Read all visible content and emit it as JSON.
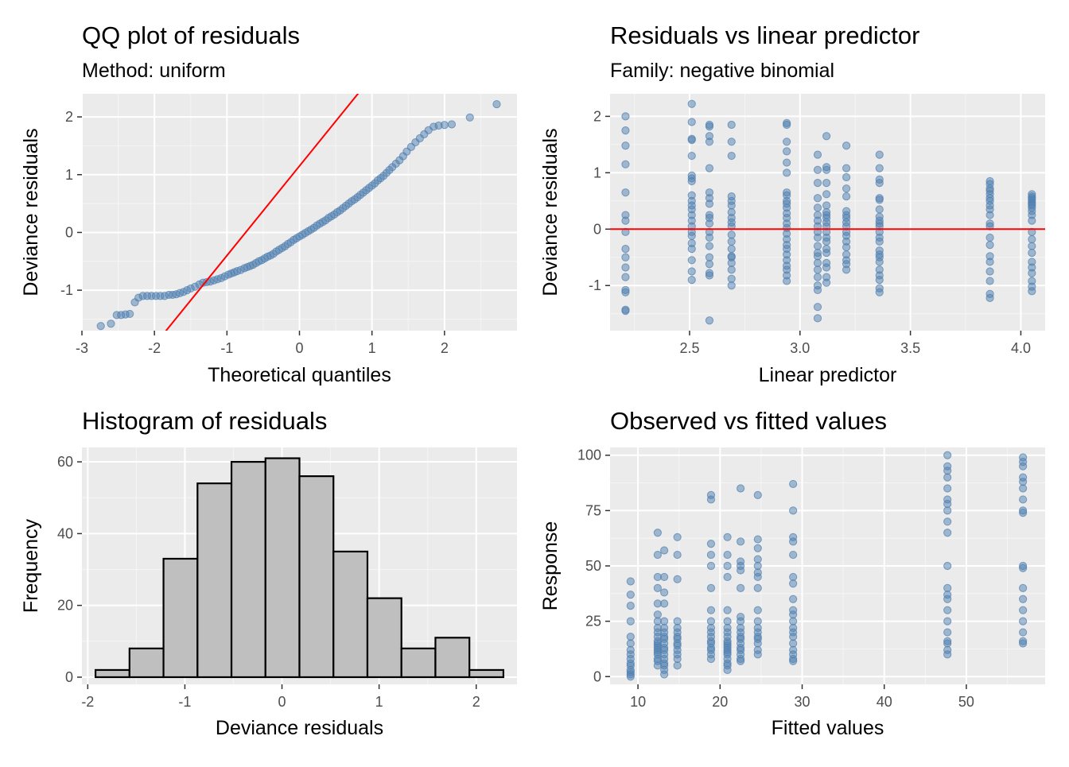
{
  "colors": {
    "panel_bg": "#ebebeb",
    "grid_major": "#ffffff",
    "grid_minor": "#f5f5f5",
    "point": "#4f7fb0",
    "reference_line": "#ff0000",
    "hist_fill": "#bfbfbf",
    "hist_stroke": "#000000"
  },
  "chart_data": [
    {
      "id": "qq",
      "type": "scatter",
      "title": "QQ plot of residuals",
      "subtitle": "Method: uniform",
      "xlabel": "Theoretical quantiles",
      "ylabel": "Deviance residuals",
      "xlim": [
        -3.0,
        3.0
      ],
      "ylim": [
        -1.7,
        2.4
      ],
      "xticks": [
        -3,
        -2,
        -1,
        0,
        1,
        2
      ],
      "xtick_labels": [
        "-3",
        "-2",
        "-1",
        "0",
        "1",
        "2"
      ],
      "yticks": [
        -1,
        0,
        1,
        2
      ],
      "ytick_labels": [
        "-1",
        "0",
        "1",
        "2"
      ],
      "grid": true,
      "reference_line": {
        "slope": 1.55,
        "intercept": 1.15
      },
      "points": [
        [
          -2.74,
          -1.62
        ],
        [
          -2.6,
          -1.58
        ],
        [
          -2.52,
          -1.43
        ],
        [
          -2.46,
          -1.43
        ],
        [
          -2.4,
          -1.42
        ],
        [
          -2.34,
          -1.41
        ],
        [
          -2.27,
          -1.21
        ],
        [
          -2.22,
          -1.13
        ],
        [
          -2.16,
          -1.1
        ],
        [
          -2.1,
          -1.1
        ],
        [
          -2.04,
          -1.1
        ],
        [
          -1.98,
          -1.1
        ],
        [
          -1.92,
          -1.1
        ],
        [
          -1.86,
          -1.1
        ],
        [
          -1.8,
          -1.08
        ],
        [
          -1.75,
          -1.08
        ],
        [
          -1.7,
          -1.07
        ],
        [
          -1.65,
          -1.05
        ],
        [
          -1.6,
          -1.03
        ],
        [
          -1.55,
          -1.0
        ],
        [
          -1.5,
          -0.97
        ],
        [
          -1.44,
          -0.94
        ],
        [
          -1.38,
          -0.9
        ],
        [
          -1.33,
          -0.87
        ],
        [
          -1.28,
          -0.86
        ],
        [
          -1.23,
          -0.85
        ],
        [
          -1.18,
          -0.83
        ],
        [
          -1.13,
          -0.81
        ],
        [
          -1.08,
          -0.79
        ],
        [
          -1.03,
          -0.76
        ],
        [
          -0.98,
          -0.73
        ],
        [
          -0.94,
          -0.71
        ],
        [
          -0.9,
          -0.69
        ],
        [
          -0.86,
          -0.67
        ],
        [
          -0.81,
          -0.65
        ],
        [
          -0.76,
          -0.62
        ],
        [
          -0.72,
          -0.6
        ],
        [
          -0.68,
          -0.58
        ],
        [
          -0.64,
          -0.56
        ],
        [
          -0.6,
          -0.53
        ],
        [
          -0.56,
          -0.5
        ],
        [
          -0.52,
          -0.48
        ],
        [
          -0.48,
          -0.45
        ],
        [
          -0.44,
          -0.42
        ],
        [
          -0.4,
          -0.4
        ],
        [
          -0.36,
          -0.37
        ],
        [
          -0.32,
          -0.33
        ],
        [
          -0.28,
          -0.3
        ],
        [
          -0.24,
          -0.27
        ],
        [
          -0.2,
          -0.24
        ],
        [
          -0.16,
          -0.2
        ],
        [
          -0.12,
          -0.17
        ],
        [
          -0.08,
          -0.13
        ],
        [
          -0.04,
          -0.1
        ],
        [
          0.0,
          -0.07
        ],
        [
          0.04,
          -0.04
        ],
        [
          0.08,
          -0.01
        ],
        [
          0.12,
          0.02
        ],
        [
          0.16,
          0.05
        ],
        [
          0.2,
          0.08
        ],
        [
          0.24,
          0.12
        ],
        [
          0.28,
          0.15
        ],
        [
          0.32,
          0.18
        ],
        [
          0.36,
          0.21
        ],
        [
          0.4,
          0.25
        ],
        [
          0.44,
          0.28
        ],
        [
          0.48,
          0.31
        ],
        [
          0.52,
          0.35
        ],
        [
          0.56,
          0.38
        ],
        [
          0.6,
          0.42
        ],
        [
          0.64,
          0.46
        ],
        [
          0.68,
          0.5
        ],
        [
          0.72,
          0.54
        ],
        [
          0.76,
          0.57
        ],
        [
          0.8,
          0.61
        ],
        [
          0.84,
          0.65
        ],
        [
          0.88,
          0.69
        ],
        [
          0.92,
          0.73
        ],
        [
          0.96,
          0.77
        ],
        [
          1.0,
          0.81
        ],
        [
          1.04,
          0.85
        ],
        [
          1.08,
          0.9
        ],
        [
          1.12,
          0.94
        ],
        [
          1.16,
          0.98
        ],
        [
          1.2,
          1.03
        ],
        [
          1.24,
          1.08
        ],
        [
          1.28,
          1.13
        ],
        [
          1.33,
          1.19
        ],
        [
          1.38,
          1.25
        ],
        [
          1.43,
          1.32
        ],
        [
          1.48,
          1.4
        ],
        [
          1.54,
          1.48
        ],
        [
          1.6,
          1.56
        ],
        [
          1.66,
          1.63
        ],
        [
          1.72,
          1.7
        ],
        [
          1.78,
          1.77
        ],
        [
          1.85,
          1.83
        ],
        [
          1.92,
          1.85
        ],
        [
          2.0,
          1.86
        ],
        [
          2.1,
          1.87
        ],
        [
          2.35,
          1.99
        ],
        [
          2.72,
          2.22
        ]
      ]
    },
    {
      "id": "resid-vs-lp",
      "type": "scatter",
      "title": "Residuals vs linear predictor",
      "subtitle": "Family: negative binomial",
      "xlabel": "Linear predictor",
      "ylabel": "Deviance residuals",
      "xlim": [
        2.14,
        4.11
      ],
      "ylim": [
        -1.8,
        2.4
      ],
      "xticks": [
        2.5,
        3.0,
        3.5,
        4.0
      ],
      "xtick_labels": [
        "2.5",
        "3.0",
        "3.5",
        "4.0"
      ],
      "yticks": [
        -1,
        0,
        1,
        2
      ],
      "ytick_labels": [
        "-1",
        "0",
        "1",
        "2"
      ],
      "grid": true,
      "reference_line": {
        "y": 0
      },
      "columns": [
        {
          "x": 2.21,
          "y": [
            2.0,
            1.75,
            1.48,
            1.15,
            0.65,
            0.25,
            0.15,
            -0.05,
            -0.35,
            -0.5,
            -0.68,
            -0.85,
            -1.08,
            -1.12,
            -1.43,
            -1.45
          ]
        },
        {
          "x": 2.51,
          "y": [
            2.22,
            1.9,
            1.6,
            1.58,
            1.3,
            0.95,
            0.9,
            0.85,
            0.6,
            0.5,
            0.42,
            0.35,
            0.25,
            0.15,
            0.05,
            -0.05,
            -0.12,
            -0.25,
            -0.35,
            -0.55,
            -0.75,
            -0.9
          ]
        },
        {
          "x": 2.59,
          "y": [
            1.85,
            1.82,
            1.65,
            1.55,
            1.08,
            0.65,
            0.55,
            0.45,
            0.25,
            0.2,
            0.1,
            -0.05,
            -0.15,
            -0.3,
            -0.5,
            -0.62,
            -0.78,
            -0.82,
            -1.62
          ]
        },
        {
          "x": 2.69,
          "y": [
            1.85,
            1.55,
            1.3,
            0.58,
            0.5,
            0.42,
            0.3,
            0.2,
            0.12,
            0.05,
            -0.1,
            -0.22,
            -0.35,
            -0.48,
            -0.5,
            -0.6,
            -0.72,
            -0.88,
            -1.0
          ]
        },
        {
          "x": 2.94,
          "y": [
            1.88,
            1.85,
            1.55,
            1.38,
            1.18,
            1.0,
            0.65,
            0.6,
            0.5,
            0.45,
            0.38,
            0.28,
            0.2,
            0.1,
            0.02,
            -0.08,
            -0.18,
            -0.28,
            -0.35,
            -0.45,
            -0.55,
            -0.65,
            -0.72,
            -0.82,
            -0.92
          ]
        },
        {
          "x": 3.08,
          "y": [
            1.32,
            1.05,
            0.82,
            0.55,
            0.38,
            0.25,
            0.15,
            0.05,
            -0.05,
            -0.15,
            -0.3,
            -0.42,
            -0.48,
            -0.6,
            -0.72,
            -0.85,
            -1.0,
            -1.08,
            -1.38,
            -1.58
          ]
        },
        {
          "x": 3.12,
          "y": [
            1.65,
            1.1,
            1.05,
            0.82,
            0.62,
            0.42,
            0.3,
            0.25,
            0.2,
            0.12,
            0.05,
            -0.05,
            -0.15,
            -0.22,
            -0.35,
            -0.42,
            -0.6,
            -0.68,
            -0.85,
            -0.95
          ]
        },
        {
          "x": 3.21,
          "y": [
            1.48,
            1.08,
            0.92,
            0.72,
            0.58,
            0.32,
            0.25,
            0.2,
            0.12,
            0.05,
            -0.05,
            -0.12,
            -0.22,
            -0.32,
            -0.45,
            -0.55,
            -0.62,
            -0.72
          ]
        },
        {
          "x": 3.36,
          "y": [
            1.32,
            1.08,
            0.88,
            0.82,
            0.55,
            0.52,
            0.35,
            0.22,
            0.15,
            0.1,
            0.05,
            -0.05,
            -0.15,
            -0.22,
            -0.38,
            -0.45,
            -0.5,
            -0.58,
            -0.72,
            -0.82,
            -0.9,
            -1.05,
            -1.12
          ]
        },
        {
          "x": 3.86,
          "y": [
            0.85,
            0.8,
            0.72,
            0.68,
            0.62,
            0.55,
            0.5,
            0.42,
            0.35,
            0.25,
            0.1,
            0.05,
            -0.15,
            -0.28,
            -0.48,
            -0.58,
            -0.75,
            -0.92,
            -1.15,
            -1.22
          ]
        },
        {
          "x": 4.05,
          "y": [
            0.62,
            0.58,
            0.55,
            0.52,
            0.48,
            0.45,
            0.42,
            0.38,
            0.32,
            0.25,
            0.15,
            -0.05,
            -0.18,
            -0.3,
            -0.42,
            -0.58,
            -0.68,
            -0.78,
            -0.92,
            -1.02,
            -1.1
          ]
        }
      ]
    },
    {
      "id": "histogram",
      "type": "bar",
      "title": "Histogram of residuals",
      "xlabel": "Deviance residuals",
      "ylabel": "Frequency",
      "xlim": [
        -2.06,
        2.42
      ],
      "ylim": [
        -2,
        64
      ],
      "xticks": [
        -2,
        -1,
        0,
        1,
        2
      ],
      "xtick_labels": [
        "-2",
        "-1",
        "0",
        "1",
        "2"
      ],
      "yticks": [
        0,
        20,
        40,
        60
      ],
      "ytick_labels": [
        "0",
        "20",
        "40",
        "60"
      ],
      "grid": true,
      "bin_edges": [
        -1.92,
        -1.57,
        -1.22,
        -0.87,
        -0.52,
        -0.17,
        0.18,
        0.53,
        0.88,
        1.23,
        1.58,
        1.93,
        2.28
      ],
      "bins": [
        {
          "center": -1.745,
          "value": 2
        },
        {
          "center": -1.395,
          "value": 8
        },
        {
          "center": -1.045,
          "value": 33
        },
        {
          "center": -0.695,
          "value": 54
        },
        {
          "center": -0.345,
          "value": 60
        },
        {
          "center": 0.005,
          "value": 61
        },
        {
          "center": 0.355,
          "value": 56
        },
        {
          "center": 0.705,
          "value": 35
        },
        {
          "center": 1.055,
          "value": 22
        },
        {
          "center": 1.405,
          "value": 8
        },
        {
          "center": 1.755,
          "value": 11
        },
        {
          "center": 2.105,
          "value": 2
        }
      ]
    },
    {
      "id": "obs-vs-fitted",
      "type": "scatter",
      "title": "Observed vs fitted values",
      "xlabel": "Fitted values",
      "ylabel": "Response",
      "xlim": [
        6.6,
        59.6
      ],
      "ylim": [
        -3.5,
        103.5
      ],
      "xticks": [
        10,
        20,
        30,
        40,
        50
      ],
      "xtick_labels": [
        "10",
        "20",
        "30",
        "40",
        "50"
      ],
      "yticks": [
        0,
        25,
        50,
        75,
        100
      ],
      "ytick_labels": [
        "0",
        "25",
        "50",
        "75",
        "100"
      ],
      "grid": true,
      "columns": [
        {
          "x": 9.1,
          "y": [
            43,
            37,
            32,
            25,
            18,
            15,
            12,
            10,
            8,
            6,
            5,
            3,
            2,
            1,
            0
          ]
        },
        {
          "x": 12.4,
          "y": [
            65,
            55,
            45,
            40,
            33,
            28,
            25,
            22,
            20,
            18,
            16,
            15,
            14,
            13,
            12,
            11,
            10,
            8,
            7,
            5
          ]
        },
        {
          "x": 13.2,
          "y": [
            57,
            45,
            38,
            33,
            25,
            22,
            20,
            18,
            17,
            15,
            13,
            12,
            10,
            8,
            6,
            5,
            3,
            1
          ]
        },
        {
          "x": 14.8,
          "y": [
            63,
            55,
            44,
            25,
            22,
            20,
            18,
            17,
            15,
            14,
            12,
            10,
            8,
            5
          ]
        },
        {
          "x": 18.9,
          "y": [
            82,
            80,
            60,
            55,
            50,
            40,
            30,
            25,
            22,
            20,
            18,
            16,
            15,
            13,
            12,
            10,
            8
          ]
        },
        {
          "x": 20.9,
          "y": [
            63,
            55,
            50,
            45,
            30,
            25,
            22,
            20,
            18,
            16,
            15,
            14,
            13,
            12,
            11,
            10,
            8,
            6,
            5,
            3
          ]
        },
        {
          "x": 22.5,
          "y": [
            85,
            61,
            52,
            50,
            48,
            40,
            27,
            25,
            22,
            20,
            18,
            17,
            15,
            13,
            12,
            10,
            8,
            7
          ]
        },
        {
          "x": 24.6,
          "y": [
            82,
            62,
            58,
            53,
            50,
            47,
            45,
            40,
            30,
            25,
            22,
            20,
            18,
            17,
            15,
            12,
            10
          ]
        },
        {
          "x": 28.9,
          "y": [
            87,
            75,
            63,
            61,
            55,
            45,
            42,
            35,
            30,
            28,
            25,
            22,
            20,
            18,
            15,
            12,
            10,
            8,
            7
          ]
        },
        {
          "x": 47.7,
          "y": [
            100,
            95,
            93,
            90,
            85,
            80,
            78,
            75,
            70,
            65,
            50,
            40,
            37,
            35,
            30,
            25,
            20,
            16,
            15,
            12,
            10
          ]
        },
        {
          "x": 56.9,
          "y": [
            99,
            97,
            95,
            90,
            88,
            85,
            80,
            75,
            74,
            50,
            49,
            40,
            35,
            30,
            25,
            20,
            16,
            15
          ]
        }
      ]
    }
  ]
}
